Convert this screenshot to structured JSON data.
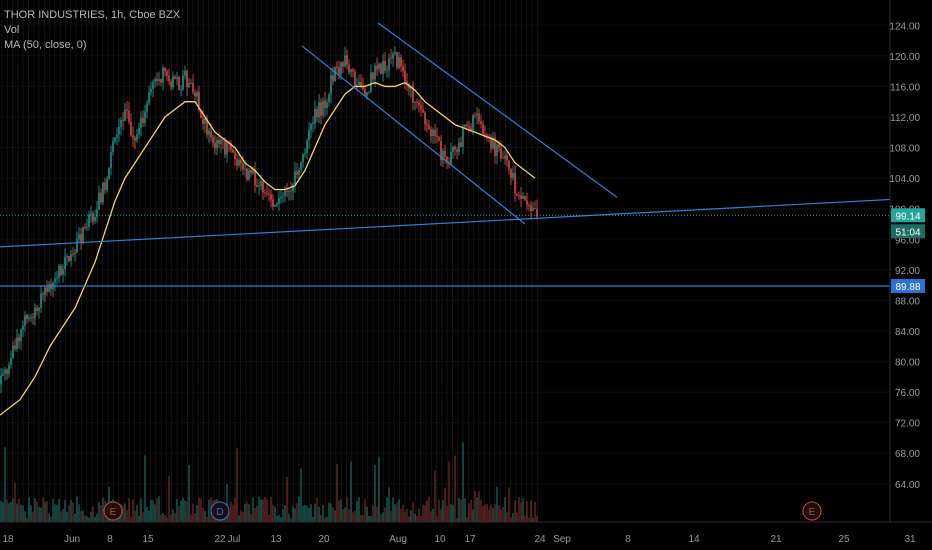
{
  "legend": {
    "title": "THOR INDUSTRIES, 1h, Cboe BZX",
    "volume": "Vol",
    "ma": "MA (50, close, 0)"
  },
  "price_labels": {
    "last": "99.14",
    "countdown": "51:04",
    "level": "89.88"
  },
  "events": [
    {
      "label": "E",
      "date_index": 2,
      "color": "#d0453a"
    },
    {
      "label": "D",
      "date_index": 4,
      "color": "#2f77c7"
    },
    {
      "label": "E",
      "date_index": 15,
      "color": "#d0453a"
    }
  ],
  "colors": {
    "up": "#26a69a",
    "down": "#ef5350",
    "ma": "#f2d36b",
    "trendline": "#2f7fd8",
    "last_price_bg": "#26a69a",
    "level_bg": "#2a72d4"
  },
  "chart_data": {
    "type": "candlestick",
    "title": "THOR INDUSTRIES, 1h, Cboe BZX",
    "ylim": [
      59,
      126
    ],
    "y_ticks": [
      "64.00",
      "68.00",
      "72.00",
      "76.00",
      "80.00",
      "84.00",
      "88.00",
      "92.00",
      "96.00",
      "100.00",
      "104.00",
      "108.00",
      "112.00",
      "116.00",
      "120.00",
      "124.00"
    ],
    "x_ticks": [
      "18",
      "Jun",
      "8",
      "15",
      "22",
      "Jul",
      "13",
      "20",
      "Aug",
      "10",
      "17",
      "24",
      "Sep",
      "8",
      "14",
      "21",
      "25",
      "31"
    ],
    "price_path": [
      [
        0,
        77
      ],
      [
        10,
        80
      ],
      [
        20,
        84
      ],
      [
        35,
        87
      ],
      [
        50,
        90
      ],
      [
        60,
        92
      ],
      [
        75,
        95
      ],
      [
        85,
        97
      ],
      [
        95,
        100
      ],
      [
        105,
        103
      ],
      [
        115,
        110
      ],
      [
        125,
        113
      ],
      [
        135,
        108
      ],
      [
        145,
        113
      ],
      [
        155,
        117
      ],
      [
        165,
        118
      ],
      [
        175,
        116
      ],
      [
        185,
        117
      ],
      [
        195,
        115
      ],
      [
        205,
        111
      ],
      [
        215,
        109
      ],
      [
        225,
        108
      ],
      [
        235,
        107
      ],
      [
        245,
        105
      ],
      [
        255,
        104
      ],
      [
        265,
        103
      ],
      [
        275,
        100
      ],
      [
        285,
        102
      ],
      [
        295,
        104
      ],
      [
        305,
        108
      ],
      [
        315,
        112
      ],
      [
        325,
        114
      ],
      [
        335,
        118
      ],
      [
        345,
        119
      ],
      [
        355,
        117
      ],
      [
        365,
        115
      ],
      [
        375,
        118
      ],
      [
        385,
        119
      ],
      [
        395,
        120
      ],
      [
        405,
        117
      ],
      [
        415,
        114
      ],
      [
        425,
        111
      ],
      [
        435,
        109
      ],
      [
        445,
        106
      ],
      [
        455,
        108
      ],
      [
        465,
        110
      ],
      [
        475,
        112
      ],
      [
        485,
        110
      ],
      [
        495,
        108
      ],
      [
        505,
        106
      ],
      [
        515,
        103
      ],
      [
        525,
        100
      ],
      [
        535,
        99.14
      ]
    ],
    "ma50": [
      [
        0,
        73
      ],
      [
        10,
        74
      ],
      [
        20,
        75
      ],
      [
        35,
        78
      ],
      [
        50,
        82
      ],
      [
        60,
        84
      ],
      [
        75,
        87
      ],
      [
        85,
        90
      ],
      [
        95,
        93
      ],
      [
        105,
        97
      ],
      [
        115,
        101
      ],
      [
        125,
        104
      ],
      [
        135,
        106
      ],
      [
        145,
        108
      ],
      [
        155,
        110
      ],
      [
        165,
        112
      ],
      [
        175,
        113
      ],
      [
        185,
        114
      ],
      [
        195,
        114
      ],
      [
        205,
        112
      ],
      [
        215,
        110
      ],
      [
        225,
        109
      ],
      [
        235,
        108
      ],
      [
        245,
        106
      ],
      [
        255,
        105
      ],
      [
        265,
        103.5
      ],
      [
        275,
        102.5
      ],
      [
        285,
        102.5
      ],
      [
        295,
        103
      ],
      [
        305,
        105
      ],
      [
        315,
        108
      ],
      [
        325,
        111
      ],
      [
        335,
        113
      ],
      [
        345,
        115
      ],
      [
        355,
        116
      ],
      [
        365,
        116
      ],
      [
        375,
        116.5
      ],
      [
        385,
        116
      ],
      [
        395,
        116
      ],
      [
        405,
        116.5
      ],
      [
        415,
        115.5
      ],
      [
        425,
        114
      ],
      [
        435,
        113
      ],
      [
        445,
        112
      ],
      [
        455,
        111
      ],
      [
        465,
        110.5
      ],
      [
        475,
        110
      ],
      [
        485,
        109.5
      ],
      [
        495,
        109
      ],
      [
        505,
        108
      ],
      [
        515,
        106
      ],
      [
        525,
        105
      ],
      [
        535,
        104
      ]
    ],
    "trendlines": [
      {
        "from": [
          0,
          95
        ],
        "to": [
          890,
          101.2
        ]
      },
      {
        "from": [
          302,
          121.3
        ],
        "to": [
          525,
          98
        ]
      },
      {
        "from": [
          378,
          124.3
        ],
        "to": [
          617,
          101.5
        ]
      }
    ],
    "horizontal_levels": [
      89.88
    ],
    "last_price": 99.14,
    "volume_scale_max": 100
  }
}
